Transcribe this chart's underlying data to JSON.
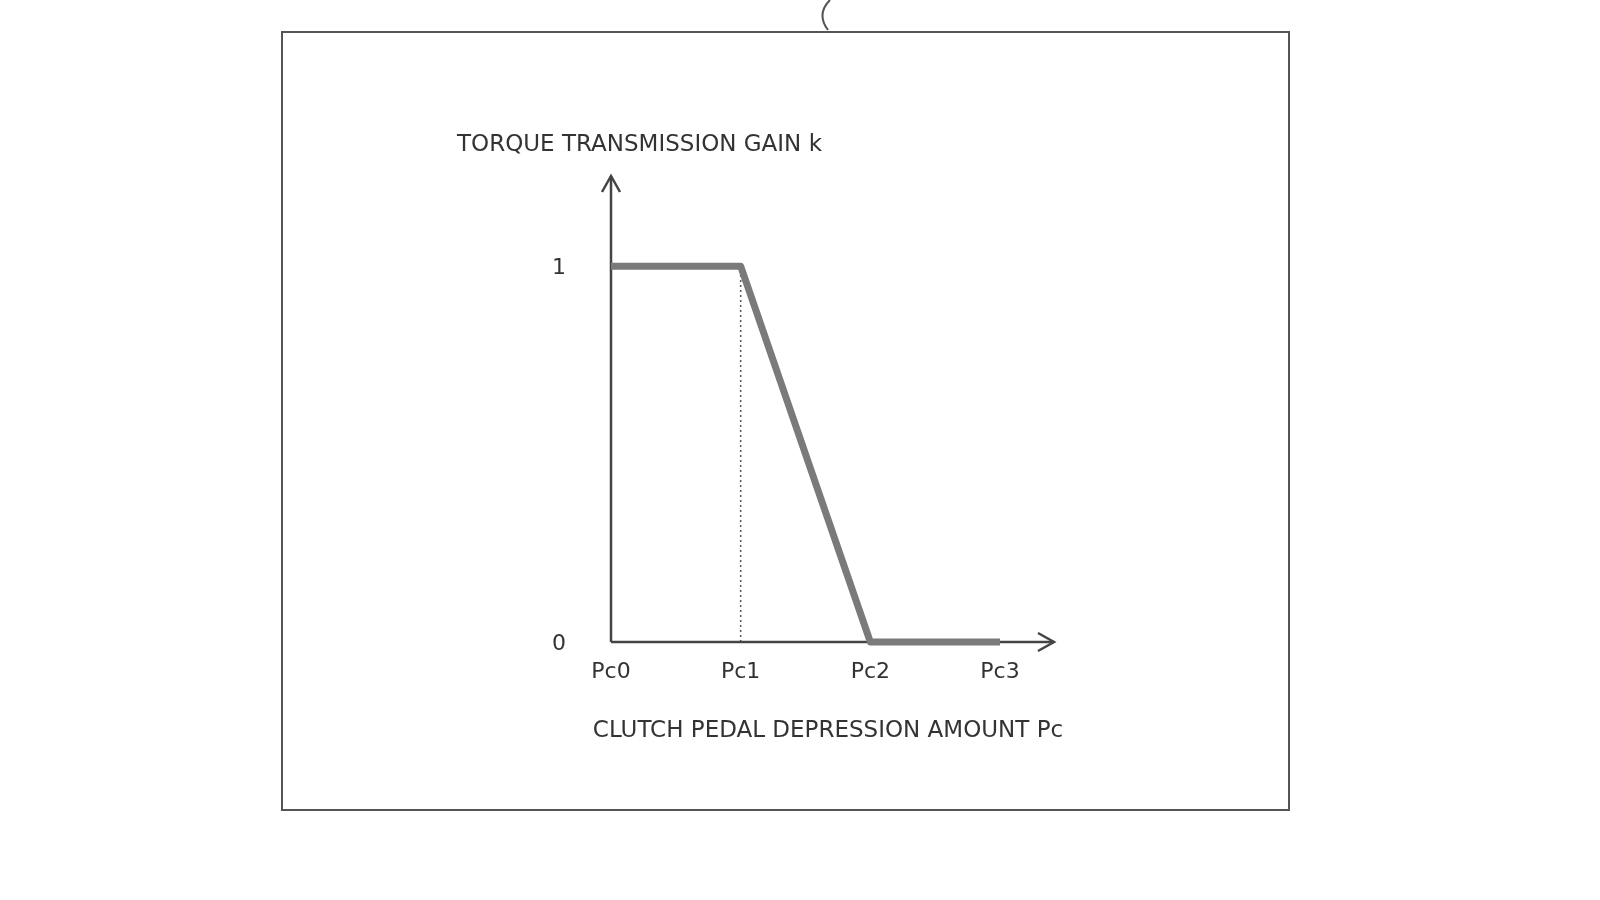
{
  "chart_data": {
    "type": "line",
    "xlabel": "CLUTCH PEDAL DEPRESSION AMOUNT Pc",
    "ylabel": "TORQUE TRANSMISSION GAIN k",
    "categories": [
      "Pc0",
      "Pc1",
      "Pc2",
      "Pc3"
    ],
    "series": [
      {
        "color": "#7a7a7a",
        "values": [
          1,
          1,
          0,
          0
        ]
      }
    ],
    "ylim": [
      0,
      1.24
    ],
    "yticks": [
      0,
      1
    ],
    "ref_lines": [
      {
        "axis": "x",
        "value": "Pc1",
        "line_style": "dotted",
        "color": "#555555"
      }
    ],
    "line_style": "solid"
  }
}
